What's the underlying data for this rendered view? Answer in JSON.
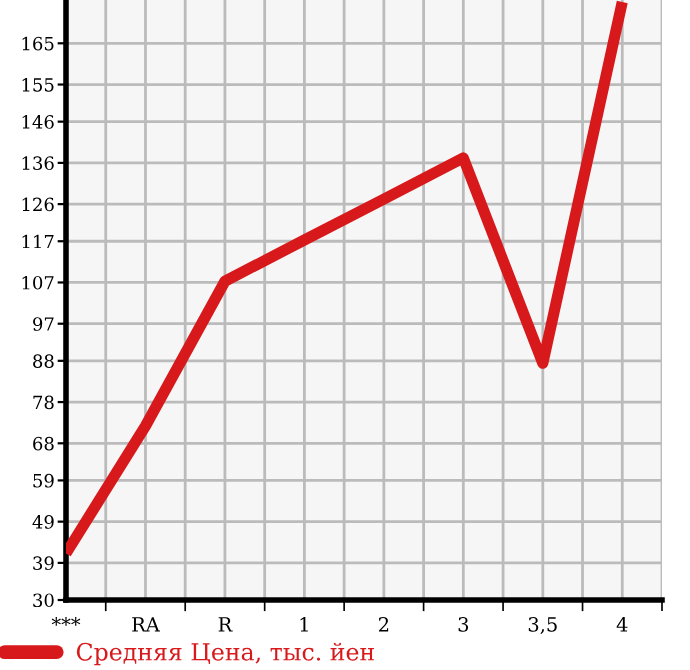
{
  "chart_data": {
    "type": "line",
    "categories": [
      "***",
      "RA",
      "R",
      "1",
      "2",
      "3",
      "3,5",
      "4"
    ],
    "series": [
      {
        "name": "Средняя Цена, тыс. йен",
        "color": "#d7191c",
        "values": [
          41.3,
          72.2,
          107.3,
          117.3,
          127.2,
          137.2,
          87.4,
          175
        ]
      }
    ],
    "ylim": [
      30,
      175.5
    ],
    "yticks": [
      30,
      39,
      49,
      59,
      68,
      78,
      88,
      97,
      107,
      117,
      126,
      136,
      146,
      155,
      165
    ],
    "grid": true,
    "legend": "bottom left",
    "marker": "none",
    "line_style": "solid"
  }
}
